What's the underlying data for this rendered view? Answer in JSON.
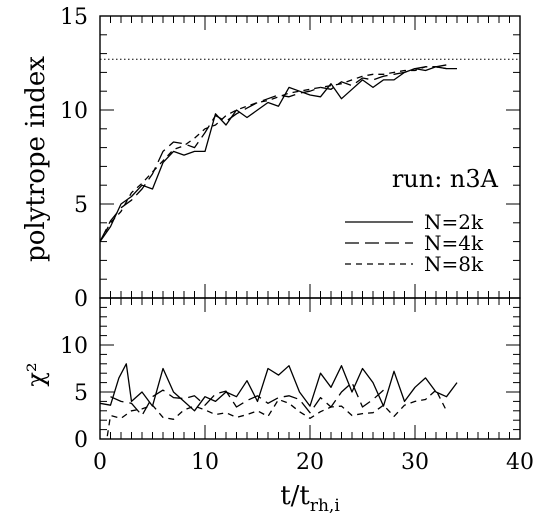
{
  "chart_data": [
    {
      "type": "line",
      "panel": "top",
      "ylabel": "polytrope index",
      "xlim": [
        0,
        40
      ],
      "ylim": [
        0,
        15
      ],
      "yticks": [
        0,
        5,
        10,
        15
      ],
      "reference_line": {
        "y": 12.7,
        "style": "dotted"
      },
      "annotation": "run: n3A",
      "legend_placement": "lower-right",
      "series": [
        {
          "name": "N=2k",
          "style": "solid",
          "x": [
            0,
            1,
            2,
            3,
            4,
            5,
            6,
            7,
            8,
            9,
            10,
            11,
            12,
            13,
            14,
            15,
            16,
            17,
            18,
            19,
            20,
            21,
            22,
            23,
            24,
            25,
            26,
            27,
            28,
            29,
            30,
            31,
            32,
            33,
            34
          ],
          "y": [
            3.0,
            3.8,
            5.0,
            5.4,
            6.0,
            5.8,
            7.2,
            7.8,
            7.6,
            7.8,
            7.8,
            9.8,
            9.2,
            10.0,
            9.6,
            10.0,
            10.4,
            10.2,
            11.2,
            11.0,
            10.8,
            10.7,
            11.4,
            10.6,
            11.1,
            11.6,
            11.2,
            11.6,
            11.6,
            12.0,
            12.2,
            12.1,
            12.3,
            12.2,
            12.2
          ]
        },
        {
          "name": "N=4k",
          "style": "long-dash",
          "x": [
            0,
            1,
            2,
            3,
            4,
            5,
            6,
            7,
            8,
            9,
            10,
            11,
            12,
            13,
            14,
            15,
            16,
            17,
            18,
            19,
            20,
            21,
            22,
            23,
            24,
            25,
            26,
            27,
            28,
            29,
            30,
            31,
            32,
            33
          ],
          "y": [
            3.0,
            4.1,
            4.8,
            5.2,
            5.8,
            6.6,
            7.8,
            8.3,
            8.2,
            8.0,
            8.8,
            9.7,
            9.4,
            9.8,
            10.1,
            10.4,
            10.6,
            10.8,
            10.7,
            10.9,
            11.0,
            11.2,
            11.1,
            11.5,
            11.3,
            11.7,
            11.6,
            11.8,
            11.9,
            12.0,
            12.2,
            12.3,
            12.3,
            12.4
          ]
        },
        {
          "name": "N=8k",
          "style": "short-dash",
          "x": [
            0,
            1,
            2,
            3,
            4,
            5,
            6,
            7,
            8,
            9,
            10,
            11,
            12,
            13,
            14,
            15,
            16,
            17,
            18,
            19,
            20,
            21,
            22,
            23,
            24,
            25,
            26,
            27,
            28,
            29,
            30,
            31,
            32,
            33
          ],
          "y": [
            3.0,
            4.0,
            4.6,
            5.6,
            6.1,
            6.7,
            7.3,
            7.9,
            8.1,
            8.5,
            9.0,
            9.2,
            9.7,
            10.0,
            10.2,
            10.4,
            10.5,
            10.7,
            10.9,
            11.0,
            11.1,
            11.2,
            11.3,
            11.4,
            11.6,
            11.8,
            11.9,
            11.9,
            12.0,
            12.1,
            12.1,
            12.3,
            12.3,
            12.2
          ]
        }
      ]
    },
    {
      "type": "line",
      "panel": "bottom",
      "ylabel": "χ²",
      "xlabel": {
        "main": "t/t",
        "sub": "rh,i"
      },
      "xlim": [
        0,
        40
      ],
      "ylim": [
        0,
        15
      ],
      "xticks": [
        0,
        10,
        20,
        30,
        40
      ],
      "yticks": [
        0,
        5,
        10
      ],
      "series": [
        {
          "name": "N=2k",
          "style": "solid",
          "x": [
            0,
            1,
            1.8,
            2.5,
            3,
            4,
            5,
            6,
            7,
            8,
            9,
            10,
            11,
            12,
            13,
            14,
            15,
            16,
            17,
            18,
            19,
            20,
            21,
            22,
            23,
            24,
            25,
            26,
            27,
            28,
            29,
            30,
            31,
            32,
            33,
            34
          ],
          "y": [
            3.8,
            3.6,
            6.5,
            8.0,
            4.0,
            5.0,
            3.5,
            7.5,
            5.0,
            4.0,
            3.0,
            4.5,
            4.0,
            5.0,
            4.5,
            6.2,
            4.0,
            7.5,
            6.8,
            7.8,
            5.0,
            3.5,
            7.0,
            5.5,
            7.8,
            5.0,
            7.5,
            6.0,
            3.5,
            7.2,
            4.0,
            5.5,
            6.5,
            5.0,
            4.5,
            6.0
          ]
        },
        {
          "name": "N=4k",
          "style": "long-dash",
          "x": [
            1,
            2,
            3,
            4,
            5,
            6,
            7,
            8,
            9,
            10,
            11,
            12,
            13,
            14,
            15,
            16,
            17,
            18,
            19,
            20,
            21,
            22,
            23,
            24,
            25,
            26,
            27
          ],
          "y": [
            4.5,
            4.0,
            3.8,
            2.5,
            4.5,
            5.2,
            4.4,
            4.3,
            4.6,
            3.6,
            4.8,
            5.1,
            3.4,
            4.1,
            4.6,
            3.8,
            4.4,
            4.6,
            4.2,
            2.8,
            4.4,
            3.4,
            5.0,
            6.0,
            3.4,
            4.2,
            5.2
          ]
        },
        {
          "name": "N=8k",
          "style": "short-dash",
          "x": [
            0.7,
            1,
            2,
            3,
            4,
            5,
            6,
            7,
            8,
            9,
            10,
            11,
            12,
            13,
            14,
            15,
            16,
            17,
            18,
            19,
            20,
            21,
            22,
            23,
            24,
            25,
            26,
            27,
            28,
            29,
            30,
            31,
            32,
            33
          ],
          "y": [
            0.3,
            2.5,
            2.2,
            3.0,
            3.2,
            3.6,
            2.3,
            2.1,
            3.1,
            3.5,
            3.1,
            2.6,
            2.8,
            2.3,
            2.6,
            3.0,
            2.4,
            4.2,
            3.8,
            2.9,
            2.2,
            2.9,
            3.4,
            3.5,
            2.5,
            2.7,
            2.8,
            3.6,
            2.4,
            3.6,
            4.0,
            4.2,
            5.2,
            3.0
          ]
        }
      ]
    }
  ]
}
